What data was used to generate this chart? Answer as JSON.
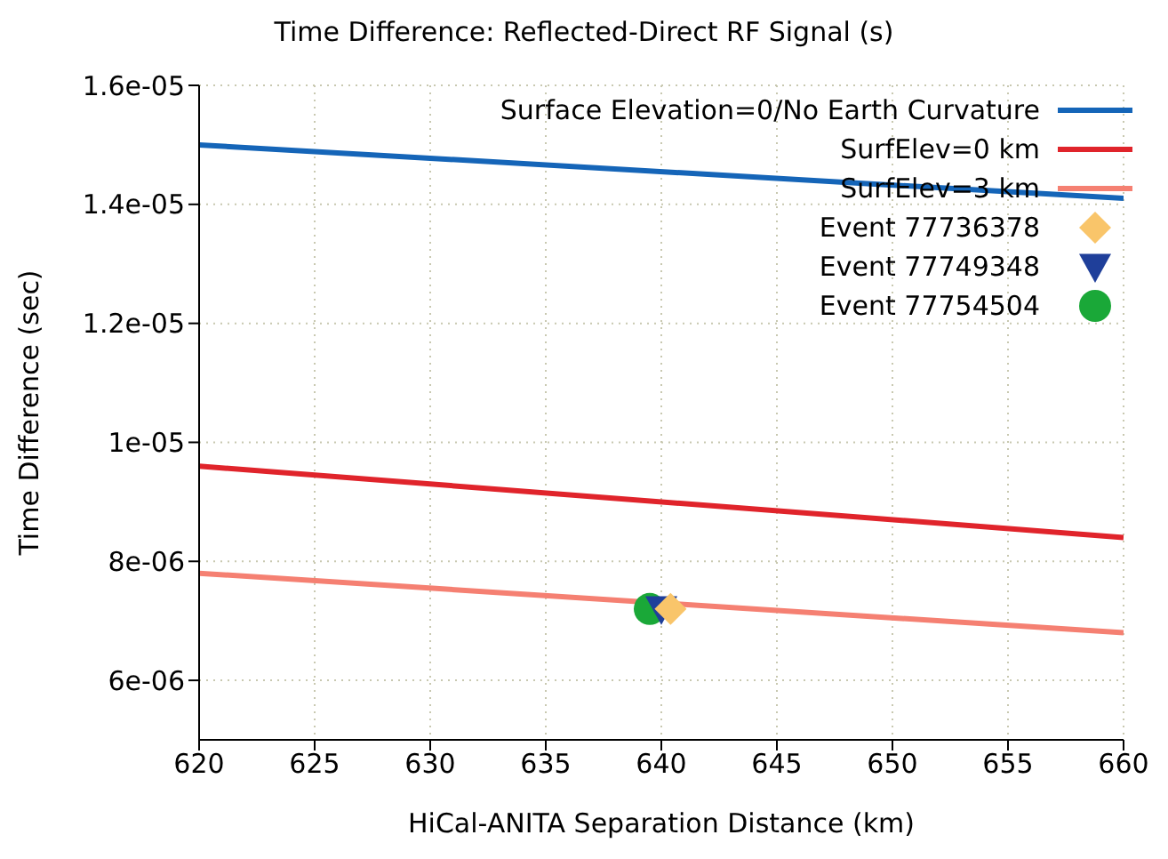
{
  "chart_data": {
    "type": "line",
    "title": "Time Difference: Reflected-Direct RF Signal (s)",
    "xlabel": "HiCal-ANITA Separation Distance (km)",
    "ylabel": "Time Difference (sec)",
    "xlim": [
      620,
      660
    ],
    "xticks": [
      620,
      625,
      630,
      635,
      640,
      645,
      650,
      655,
      660
    ],
    "ylim": [
      5e-06,
      1.6e-05
    ],
    "yticks": [
      {
        "value": 6e-06,
        "label": "6e-06"
      },
      {
        "value": 8e-06,
        "label": "8e-06"
      },
      {
        "value": 1e-05,
        "label": "1e-05"
      },
      {
        "value": 1.2e-05,
        "label": "1.2e-05"
      },
      {
        "value": 1.4e-05,
        "label": "1.4e-05"
      },
      {
        "value": 1.6e-05,
        "label": "1.6e-05"
      }
    ],
    "grid": true,
    "legend": "top right",
    "series": [
      {
        "name": "Surface Elevation=0/No Earth Curvature",
        "color": "#1565b8",
        "x": [
          620,
          660
        ],
        "values": [
          1.5e-05,
          1.41e-05
        ],
        "marker": "none"
      },
      {
        "name": "SurfElev=0 km",
        "color": "#e0242b",
        "x": [
          620,
          660
        ],
        "values": [
          9.6e-06,
          8.4e-06
        ],
        "marker": "none"
      },
      {
        "name": "SurfElev=3 km",
        "color": "#f58072",
        "x": [
          620,
          660
        ],
        "values": [
          7.8e-06,
          6.8e-06
        ],
        "marker": "none"
      },
      {
        "name": "Event 77736378",
        "type": "scatter",
        "color": "#f9c56a",
        "x": [
          640.4
        ],
        "values": [
          7.2e-06
        ],
        "marker": "diamond"
      },
      {
        "name": "Event 77749348",
        "type": "scatter",
        "color": "#1f3f9a",
        "x": [
          640
        ],
        "values": [
          7.2e-06
        ],
        "marker": "triangle"
      },
      {
        "name": "Event 77754504",
        "type": "scatter",
        "color": "#1aa838",
        "x": [
          639.5
        ],
        "values": [
          7.2e-06
        ],
        "marker": "circle"
      }
    ]
  }
}
